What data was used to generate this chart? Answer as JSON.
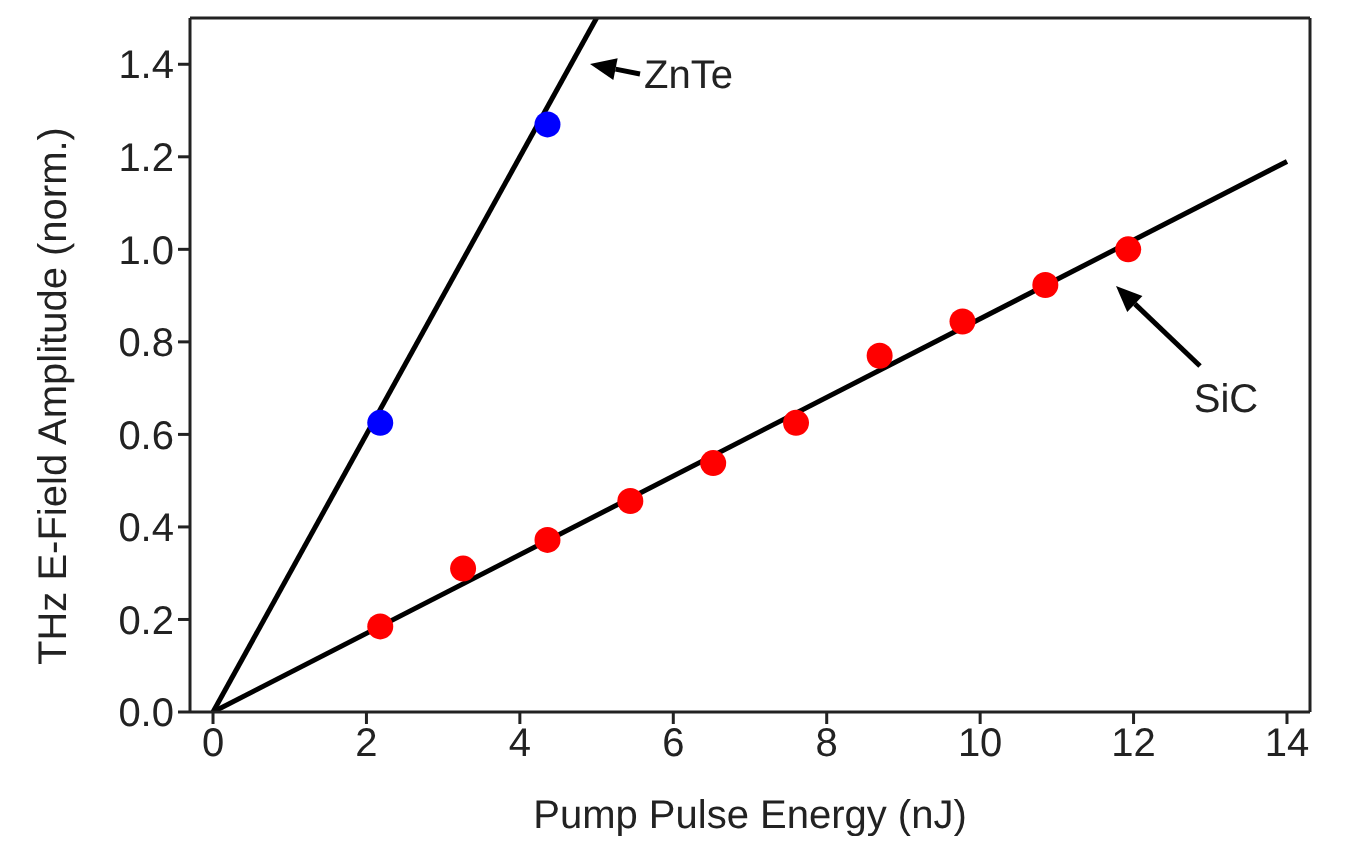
{
  "chart_data": {
    "type": "scatter",
    "xlabel": "Pump Pulse Energy (nJ)",
    "ylabel": "THz E-Field Amplitude (norm.)",
    "xlim": [
      -0.3,
      14.3
    ],
    "ylim": [
      0,
      1.5
    ],
    "xticks": [
      0,
      2,
      4,
      6,
      8,
      10,
      12,
      14
    ],
    "yticks": [
      {
        "value": 0,
        "label": "0.0"
      },
      0.2,
      0.4,
      0.6,
      0.8,
      {
        "value": 1,
        "label": "1.0"
      },
      1.2,
      1.4
    ],
    "grid": false,
    "marker": "circle",
    "series": [
      {
        "type": "line",
        "color": "#000000",
        "x": [
          0,
          5
        ],
        "values": [
          0,
          1.5
        ],
        "marker": "none",
        "line_style": "solid"
      },
      {
        "type": "line",
        "color": "#000000",
        "x": [
          0,
          14
        ],
        "values": [
          0,
          1.19
        ],
        "marker": "none",
        "line_style": "solid"
      },
      {
        "type": "scatter",
        "color": "#0000ff",
        "x": [
          2.18,
          4.36
        ],
        "values": [
          0.625,
          1.27
        ]
      },
      {
        "type": "scatter",
        "color": "#ff0000",
        "x": [
          2.18,
          3.26,
          4.36,
          5.44,
          6.52,
          7.6,
          8.69,
          9.77,
          10.85,
          11.93
        ],
        "values": [
          0.185,
          0.31,
          0.372,
          0.456,
          0.538,
          0.625,
          0.77,
          0.844,
          0.923,
          1.0
        ]
      }
    ],
    "annotations": [
      "ZnTe",
      "SiC"
    ]
  }
}
